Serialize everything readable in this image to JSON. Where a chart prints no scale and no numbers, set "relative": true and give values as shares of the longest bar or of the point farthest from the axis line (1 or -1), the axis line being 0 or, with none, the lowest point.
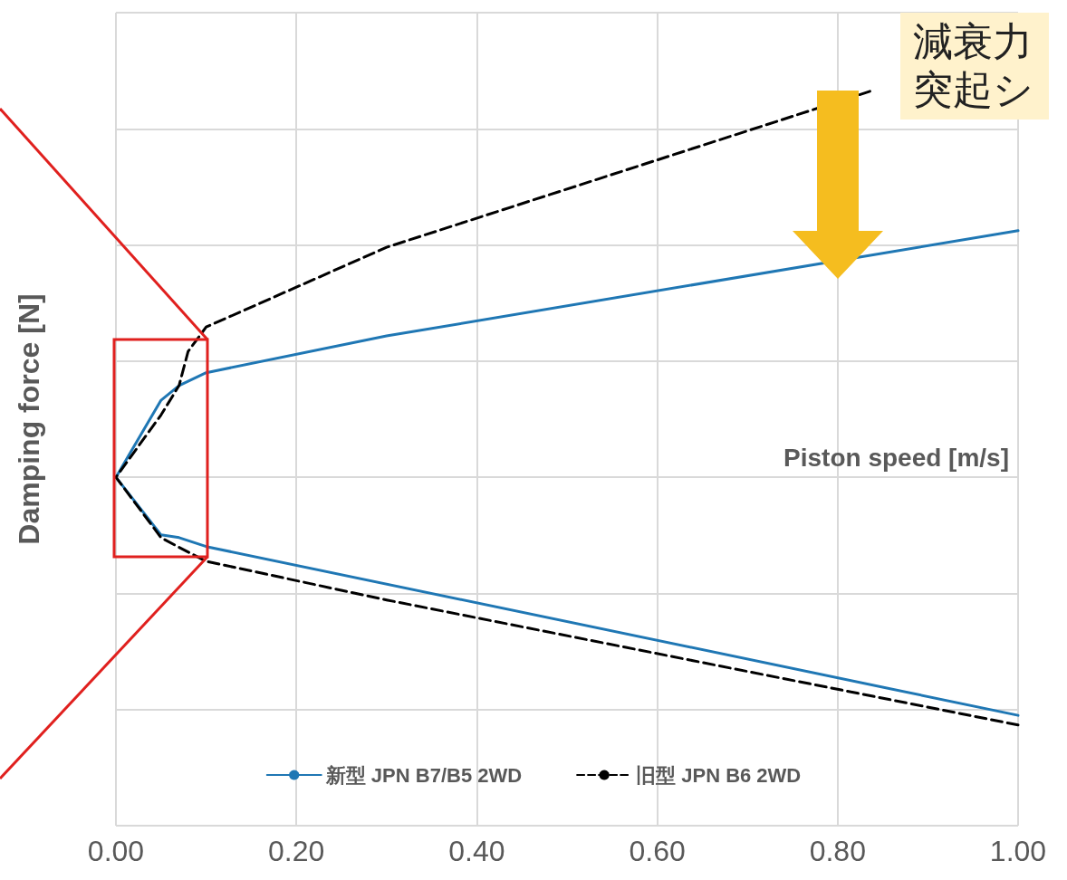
{
  "chart_data": {
    "type": "line",
    "xlabel": "Piston speed [m/s]",
    "ylabel": "Damping force [N]",
    "relative": true,
    "annotations": [
      "減衰力突起シ"
    ],
    "xlim": [
      0,
      1
    ],
    "xticks": [
      {
        "value": 0,
        "label": "0.00"
      },
      {
        "value": 0.2,
        "label": "0.20"
      },
      {
        "value": 0.4,
        "label": "0.40"
      },
      {
        "value": 0.6,
        "label": "0.60"
      },
      {
        "value": 0.8,
        "label": "0.80"
      },
      {
        "value": 1,
        "label": "1.00"
      }
    ],
    "grid": true,
    "legend": "bottom",
    "marker": "none",
    "series": [
      {
        "name": "新型 JPN B7/B5 2WD",
        "color": "#1f77b4",
        "line_style": "solid",
        "x": [
          1.0,
          0.1,
          0.07,
          0.05,
          0,
          0.05,
          0.07,
          0.1,
          0.3,
          1.0
        ],
        "values": [
          -0.615,
          -0.179,
          -0.156,
          -0.149,
          0,
          0.199,
          0.237,
          0.27,
          0.365,
          0.637
        ]
      },
      {
        "name": "旧型 JPN B6 2WD",
        "color": "#000000",
        "line_style": "dashed",
        "x": [
          1.0,
          0.3,
          0.1,
          0.07,
          0.05,
          0,
          0.05,
          0.07,
          0.08,
          0.1,
          0.3,
          0.84
        ],
        "values": [
          -0.64,
          -0.317,
          -0.217,
          -0.181,
          -0.156,
          0,
          0.161,
          0.237,
          0.325,
          0.388,
          0.594,
          1
        ]
      }
    ]
  }
}
